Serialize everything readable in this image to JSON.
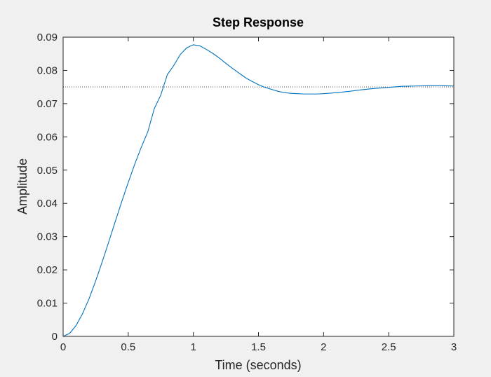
{
  "chart_data": {
    "type": "line",
    "title": "Step Response",
    "xlabel": "Time (seconds)",
    "ylabel": "Amplitude",
    "xlim": [
      0,
      3
    ],
    "ylim": [
      0,
      0.09
    ],
    "xticks": [
      0,
      0.5,
      1,
      1.5,
      2,
      2.5,
      3
    ],
    "xtick_labels": [
      "0",
      "0.5",
      "1",
      "1.5",
      "2",
      "2.5",
      "3"
    ],
    "yticks": [
      0,
      0.01,
      0.02,
      0.03,
      0.04,
      0.05,
      0.06,
      0.07,
      0.08,
      0.09
    ],
    "ytick_labels": [
      "0",
      "0.01",
      "0.02",
      "0.03",
      "0.04",
      "0.05",
      "0.06",
      "0.07",
      "0.08",
      "0.09"
    ],
    "grid": false,
    "series": [
      {
        "color": "#0072bd",
        "x": [
          0,
          0.05,
          0.1,
          0.15,
          0.2,
          0.25,
          0.3,
          0.35,
          0.4,
          0.45,
          0.5,
          0.55,
          0.6,
          0.65,
          0.7,
          0.75,
          0.8,
          0.85,
          0.9,
          0.95,
          1.0,
          1.05,
          1.1,
          1.15,
          1.2,
          1.25,
          1.3,
          1.35,
          1.4,
          1.45,
          1.5,
          1.55,
          1.6,
          1.65,
          1.7,
          1.75,
          1.8,
          1.85,
          1.9,
          1.95,
          2.0,
          2.1,
          2.2,
          2.3,
          2.4,
          2.5,
          2.6,
          2.7,
          2.8,
          2.9,
          3.0
        ],
        "y": [
          0,
          0.0009,
          0.0033,
          0.0069,
          0.0114,
          0.0167,
          0.0224,
          0.0284,
          0.0345,
          0.0405,
          0.0463,
          0.0518,
          0.0569,
          0.0615,
          0.0685,
          0.0726,
          0.0787,
          0.0815,
          0.0848,
          0.0868,
          0.0877,
          0.0874,
          0.0863,
          0.0851,
          0.0837,
          0.0821,
          0.0806,
          0.0792,
          0.0778,
          0.0767,
          0.0757,
          0.0749,
          0.0743,
          0.0737,
          0.0733,
          0.0731,
          0.073,
          0.0729,
          0.0729,
          0.0729,
          0.073,
          0.0733,
          0.0737,
          0.0742,
          0.0746,
          0.0749,
          0.0752,
          0.0753,
          0.0754,
          0.0754,
          0.0753
        ]
      }
    ],
    "reference_line": {
      "y": 0.075,
      "style": "dotted",
      "color": "#555555"
    }
  },
  "colors": {
    "figure_background": "#f0f0f0",
    "axes_background": "#ffffff",
    "axes_border": "#262626",
    "line": "#0072bd"
  }
}
